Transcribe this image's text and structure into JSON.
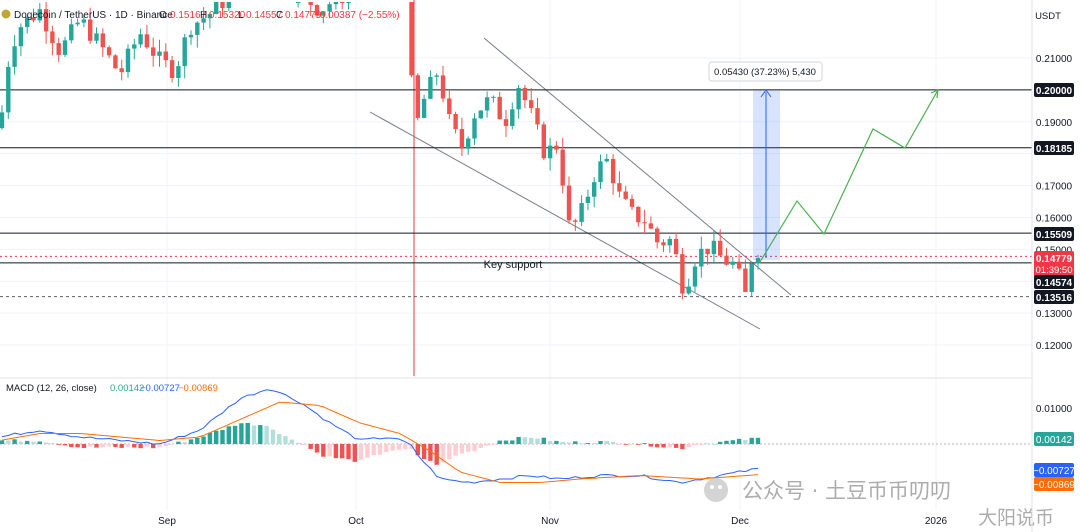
{
  "header": {
    "symbol": "Dogecoin / TetherUS · 1D · Binance",
    "o_label": "O",
    "o_value": "0.15167",
    "h_label": "H",
    "h_value": "0.15320",
    "l_label": "L",
    "l_value": "0.14557",
    "c_label": "C",
    "c_value": "0.14779",
    "change": "−0.00387 (−2.55%)"
  },
  "currency": "USDT",
  "price_axis": {
    "ticks": [
      "0.21000",
      "0.20000",
      "0.19000",
      "0.18185",
      "0.17000",
      "0.16000",
      "0.15509",
      "0.15000",
      "0.14779",
      "0.14574",
      "0.13516",
      "0.13000",
      "0.12000"
    ],
    "countdown": "01:39:50"
  },
  "levels": [
    {
      "value": 0.2,
      "label": "0.20000",
      "style": "solid"
    },
    {
      "value": 0.18185,
      "label": "0.18185",
      "style": "solid"
    },
    {
      "value": 0.15509,
      "label": "0.15509",
      "style": "solid"
    },
    {
      "value": 0.14574,
      "label": "0.14574",
      "style": "solid"
    },
    {
      "value": 0.13516,
      "label": "0.13516",
      "style": "dashed"
    }
  ],
  "annotations": {
    "key_support": "Key support",
    "measure": "0.05430 (37.23%) 5,430"
  },
  "macd": {
    "title": "MACD (12, 26, close)",
    "hist_value": "0.00142",
    "macd_value": "−0.00727",
    "signal_value": "−0.00869",
    "ticks": [
      "0.01000",
      "0.00000"
    ]
  },
  "time_axis": [
    "Sep",
    "Oct",
    "Nov",
    "Dec",
    "2026"
  ],
  "watermark": {
    "line1": "公众号 · 土豆币币叨叨",
    "line2": "大阳说币"
  },
  "colors": {
    "up": "#26a69a",
    "down": "#ef5350",
    "macd": "#2962ff",
    "signal": "#ff6d00",
    "projection": "#4caf50"
  },
  "chart_data": {
    "type": "candlestick",
    "title": "Dogecoin / TetherUS · 1D · Binance",
    "y_scale": "linear",
    "ylim": [
      0.115,
      0.222
    ],
    "series": [
      {
        "name": "DOGEUSDT daily",
        "ohlc_sample": [
          {
            "x": "Aug",
            "o": 0.205,
            "h": 0.227,
            "l": 0.196,
            "c": 0.221
          },
          {
            "x": "Sep",
            "o": 0.218,
            "h": 0.226,
            "l": 0.21,
            "c": 0.223
          },
          {
            "x": "Oct",
            "o": 0.226,
            "h": 0.244,
            "l": 0.18,
            "c": 0.19
          },
          {
            "x": "Oct",
            "o": 0.19,
            "h": 0.208,
            "l": 0.171,
            "c": 0.196
          },
          {
            "x": "Nov",
            "o": 0.181,
            "h": 0.186,
            "l": 0.148,
            "c": 0.162
          },
          {
            "x": "Nov",
            "o": 0.162,
            "h": 0.184,
            "l": 0.15,
            "c": 0.174
          },
          {
            "x": "Nov",
            "o": 0.161,
            "h": 0.164,
            "l": 0.135,
            "c": 0.143
          },
          {
            "x": "Dec",
            "o": 0.146,
            "h": 0.152,
            "l": 0.135,
            "c": 0.135
          },
          {
            "x": "Dec",
            "o": 0.135,
            "h": 0.153,
            "l": 0.134,
            "c": 0.152
          },
          {
            "x": "Dec",
            "o": 0.152,
            "h": 0.153,
            "l": 0.146,
            "c": 0.148
          }
        ]
      }
    ],
    "macd_series": [
      {
        "name": "MACD",
        "values_sample": [
          0.001,
          0.003,
          0.01,
          0.004,
          -0.001,
          -0.005,
          -0.011,
          -0.01,
          -0.009,
          -0.007
        ]
      },
      {
        "name": "Signal",
        "values_sample": [
          0.002,
          0.003,
          0.008,
          0.006,
          0.0,
          -0.004,
          -0.01,
          -0.01,
          -0.009,
          -0.009
        ]
      }
    ]
  }
}
